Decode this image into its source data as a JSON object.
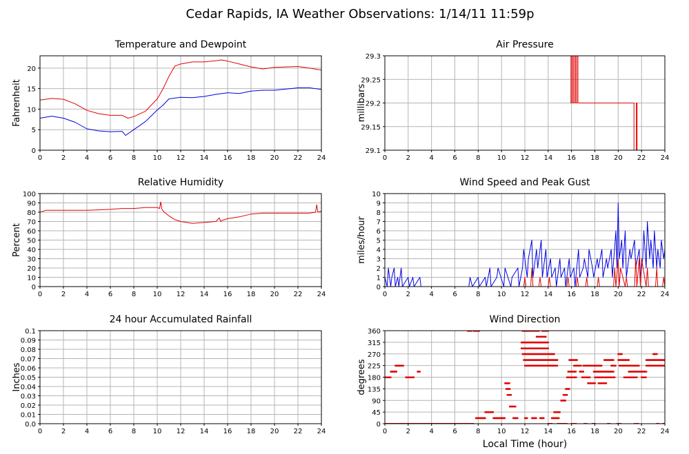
{
  "title": "Cedar Rapids, IA Weather Observations: 1/14/11 11:59p",
  "x_axis_label": "Local Time (hour)",
  "colors": {
    "red": "#e00000",
    "blue": "#0000e0",
    "grid": "#b4b4b4",
    "frame": "#000000"
  },
  "chart_data": [
    {
      "id": "temp",
      "type": "line",
      "title": "Temperature and Dewpoint",
      "xlabel": "",
      "ylabel": "Fahrenheit",
      "xlim": [
        0,
        24
      ],
      "ylim": [
        0,
        23
      ],
      "xticks": [
        0,
        2,
        4,
        6,
        8,
        10,
        12,
        14,
        16,
        18,
        20,
        22,
        24
      ],
      "yticks": [
        0,
        5,
        10,
        15,
        20
      ],
      "series": [
        {
          "color": "red",
          "x": [
            0,
            1,
            2,
            3,
            4,
            5,
            6,
            7,
            7.5,
            8,
            9,
            10,
            10.5,
            11,
            11.5,
            12,
            13,
            14,
            15,
            15.5,
            16,
            17,
            18,
            19,
            20,
            21,
            22,
            23,
            24
          ],
          "y": [
            12.2,
            12.6,
            12.4,
            11.3,
            9.7,
            8.9,
            8.5,
            8.5,
            7.8,
            8.2,
            9.5,
            12.5,
            15.0,
            18.0,
            20.5,
            21.0,
            21.5,
            21.5,
            21.8,
            22.0,
            21.7,
            21.0,
            20.3,
            19.8,
            20.2,
            20.3,
            20.4,
            20.0,
            19.5
          ]
        },
        {
          "color": "blue",
          "x": [
            0,
            1,
            2,
            3,
            4,
            5,
            6,
            7,
            7.3,
            8,
            9,
            10,
            10.5,
            11,
            12,
            13,
            14,
            15,
            16,
            17,
            18,
            19,
            20,
            21,
            22,
            23,
            24
          ],
          "y": [
            7.8,
            8.3,
            7.8,
            6.8,
            5.2,
            4.7,
            4.5,
            4.6,
            3.6,
            5.0,
            7.0,
            9.8,
            11.0,
            12.5,
            12.9,
            12.8,
            13.1,
            13.6,
            14.0,
            13.8,
            14.4,
            14.6,
            14.6,
            14.9,
            15.2,
            15.2,
            14.8
          ]
        }
      ]
    },
    {
      "id": "press",
      "type": "line",
      "title": "Air Pressure",
      "xlabel": "",
      "ylabel": "millibars",
      "xlim": [
        0,
        24
      ],
      "ylim": [
        29.1,
        29.3
      ],
      "xticks": [
        0,
        2,
        4,
        6,
        8,
        10,
        12,
        14,
        16,
        18,
        20,
        22,
        24
      ],
      "yticks": [
        29.1,
        29.15,
        29.2,
        29.25,
        29.3
      ],
      "series": [
        {
          "color": "red",
          "x": [
            0,
            15.95,
            15.95,
            16.05,
            16.05,
            16.15,
            16.15,
            16.25,
            16.25,
            16.35,
            16.35,
            16.45,
            16.45,
            16.55,
            16.55,
            16.65,
            16.65,
            21.35,
            21.35,
            21.55,
            21.55,
            21.62,
            21.62,
            21.7,
            21.7,
            24
          ],
          "y": [
            29.3,
            29.3,
            29.2,
            29.2,
            29.3,
            29.3,
            29.2,
            29.2,
            29.3,
            29.3,
            29.2,
            29.2,
            29.3,
            29.3,
            29.2,
            29.2,
            29.2,
            29.2,
            29.1,
            29.1,
            29.2,
            29.2,
            29.1,
            29.1,
            29.1,
            29.1
          ]
        }
      ]
    },
    {
      "id": "rh",
      "type": "line",
      "title": "Relative Humidity",
      "xlabel": "",
      "ylabel": "Percent",
      "xlim": [
        0,
        24
      ],
      "ylim": [
        0,
        100
      ],
      "xticks": [
        0,
        2,
        4,
        6,
        8,
        10,
        12,
        14,
        16,
        18,
        20,
        22,
        24
      ],
      "yticks": [
        0,
        10,
        20,
        30,
        40,
        50,
        60,
        70,
        80,
        90,
        100
      ],
      "series": [
        {
          "color": "red",
          "x": [
            0,
            0.5,
            2,
            4,
            6,
            7,
            8,
            9,
            10,
            10.2,
            10.3,
            10.4,
            10.6,
            11,
            11.5,
            12,
            13,
            14,
            15,
            15.3,
            15.4,
            15.5,
            16,
            17,
            18,
            19,
            20,
            21,
            22,
            23,
            23.5,
            23.6,
            23.7,
            24
          ],
          "y": [
            80,
            82,
            82,
            82,
            83,
            84,
            84,
            85,
            85,
            84,
            91,
            83,
            80,
            76,
            72,
            70,
            68,
            69,
            70,
            74,
            70,
            71,
            73,
            75,
            78,
            79,
            79,
            79,
            79,
            79,
            80,
            88,
            80,
            81
          ]
        }
      ]
    },
    {
      "id": "wind",
      "type": "line",
      "title": "Wind Speed and Peak Gust",
      "xlabel": "",
      "ylabel": "miles/hour",
      "xlim": [
        0,
        24
      ],
      "ylim": [
        0,
        10
      ],
      "xticks": [
        0,
        2,
        4,
        6,
        8,
        10,
        12,
        14,
        16,
        18,
        20,
        22,
        24
      ],
      "yticks": [
        0,
        1,
        2,
        3,
        4,
        5,
        6,
        7,
        8,
        9,
        10
      ],
      "series": [
        {
          "color": "blue",
          "x": [
            0,
            0.2,
            0.3,
            0.5,
            0.6,
            0.8,
            0.9,
            1.1,
            1.2,
            1.4,
            1.5,
            2.0,
            2.1,
            2.4,
            2.5,
            3.0,
            3.1,
            3.3,
            7.2,
            7.3,
            7.5,
            8.0,
            8.1,
            8.6,
            8.7,
            9.0,
            9.1,
            9.6,
            9.7,
            10.2,
            10.3,
            10.8,
            10.9,
            11.4,
            11.5,
            11.8,
            11.9,
            12.2,
            12.3,
            12.6,
            12.7,
            13.0,
            13.1,
            13.4,
            13.5,
            13.8,
            13.9,
            14.2,
            14.3,
            14.6,
            14.7,
            15.0,
            15.1,
            15.4,
            15.5,
            15.8,
            15.9,
            16.2,
            16.3,
            16.6,
            16.7,
            17.0,
            17.1,
            17.4,
            17.5,
            17.8,
            17.9,
            18.2,
            18.3,
            18.6,
            18.7,
            19.0,
            19.1,
            19.4,
            19.5,
            19.8,
            19.9,
            20.0,
            20.1,
            20.3,
            20.4,
            20.6,
            20.7,
            21.0,
            21.1,
            21.4,
            21.5,
            21.8,
            21.9,
            22.1,
            22.2,
            22.4,
            22.5,
            22.7,
            22.8,
            23.0,
            23.1,
            23.3,
            23.4,
            23.6,
            23.7,
            23.9,
            24
          ],
          "y": [
            1,
            0,
            2,
            0,
            1,
            2,
            0,
            1,
            0,
            2,
            0,
            1,
            0,
            1,
            0,
            1,
            0,
            0,
            0,
            1,
            0,
            1,
            0,
            1,
            0,
            2,
            0,
            1,
            2,
            0,
            2,
            0,
            1,
            2,
            0,
            2,
            4,
            1,
            3,
            5,
            1,
            4,
            2,
            5,
            1,
            4,
            1,
            3,
            1,
            2,
            0,
            3,
            1,
            2,
            0,
            3,
            1,
            2,
            0,
            4,
            1,
            2,
            3,
            1,
            4,
            2,
            1,
            3,
            2,
            4,
            1,
            3,
            2,
            4,
            1,
            6,
            2,
            9,
            3,
            5,
            2,
            6,
            1,
            4,
            3,
            5,
            2,
            4,
            1,
            3,
            6,
            2,
            7,
            3,
            5,
            2,
            6,
            2,
            4,
            2,
            5,
            3,
            4
          ]
        },
        {
          "color": "red",
          "x": [
            0,
            11.9,
            12.0,
            12.1,
            12.5,
            12.6,
            12.7,
            13.2,
            13.3,
            13.4,
            14.0,
            14.1,
            14.2,
            15.6,
            15.7,
            15.8,
            16.4,
            16.5,
            16.6,
            17.2,
            17.3,
            17.4,
            18.2,
            18.3,
            18.4,
            19.6,
            19.7,
            19.8,
            20.0,
            20.1,
            20.2,
            20.6,
            20.7,
            20.8,
            21.4,
            21.5,
            21.6,
            21.8,
            21.9,
            22.0,
            22.4,
            22.5,
            22.6,
            23.2,
            23.3,
            23.4,
            23.8,
            23.9,
            24
          ],
          "y": [
            0,
            0,
            1,
            0,
            0,
            2,
            0,
            0,
            1,
            0,
            0,
            1,
            0,
            0,
            1,
            0,
            0,
            1,
            0,
            0,
            1,
            0,
            0,
            1,
            0,
            0,
            2,
            0,
            3,
            0,
            2,
            0,
            1,
            0,
            0,
            3,
            0,
            3,
            0,
            3,
            0,
            2,
            0,
            0,
            2,
            0,
            0,
            1,
            0
          ]
        }
      ]
    },
    {
      "id": "rain",
      "type": "line",
      "title": "24 hour Accumulated Rainfall",
      "xlabel": "",
      "ylabel": "Inches",
      "xlim": [
        0,
        24
      ],
      "ylim": [
        0,
        0.1
      ],
      "xticks": [
        0,
        2,
        4,
        6,
        8,
        10,
        12,
        14,
        16,
        18,
        20,
        22,
        24
      ],
      "yticks": [
        "0.0",
        "0.01",
        "0.02",
        "0.03",
        "0.04",
        "0.05",
        "0.06",
        "0.07",
        "0.08",
        "0.09",
        "0.1"
      ],
      "series": [
        {
          "color": "red",
          "x": [
            0,
            24
          ],
          "y": [
            0,
            0
          ]
        }
      ]
    },
    {
      "id": "dir",
      "type": "scatter",
      "title": "Wind Direction",
      "xlabel": "Local Time (hour)",
      "ylabel": "degrees",
      "xlim": [
        0,
        24
      ],
      "ylim": [
        0,
        360
      ],
      "xticks": [
        0,
        2,
        4,
        6,
        8,
        10,
        12,
        14,
        16,
        18,
        20,
        22,
        24
      ],
      "yticks": [
        0,
        45,
        90,
        135,
        180,
        225,
        270,
        315,
        360
      ],
      "series": [
        {
          "color": "red",
          "runs": [
            [
              0.0,
              7.6,
              0
            ],
            [
              0.0,
              0.5,
              180
            ],
            [
              0.5,
              1.0,
              202
            ],
            [
              0.9,
              1.6,
              225
            ],
            [
              1.8,
              2.5,
              180
            ],
            [
              2.8,
              3.0,
              202
            ],
            [
              7.1,
              7.4,
              360
            ],
            [
              7.6,
              8.1,
              360
            ],
            [
              7.8,
              8.6,
              22
            ],
            [
              8.6,
              9.3,
              45
            ],
            [
              9.3,
              10.3,
              22
            ],
            [
              10.3,
              10.7,
              157
            ],
            [
              10.4,
              10.7,
              135
            ],
            [
              10.5,
              10.8,
              112
            ],
            [
              10.7,
              11.2,
              67
            ],
            [
              11.0,
              11.4,
              22
            ],
            [
              11.7,
              14.0,
              315
            ],
            [
              11.7,
              14.0,
              292
            ],
            [
              11.8,
              14.5,
              270
            ],
            [
              11.9,
              14.8,
              247
            ],
            [
              12.0,
              14.8,
              225
            ],
            [
              11.8,
              13.2,
              360
            ],
            [
              13.0,
              13.8,
              337
            ],
            [
              13.5,
              14.0,
              360
            ],
            [
              12.0,
              12.2,
              22
            ],
            [
              12.6,
              13.0,
              22
            ],
            [
              13.3,
              13.6,
              22
            ],
            [
              14.0,
              14.3,
              0
            ],
            [
              14.3,
              14.9,
              22
            ],
            [
              14.5,
              15.0,
              45
            ],
            [
              14.8,
              15.6,
              0
            ],
            [
              15.1,
              15.5,
              90
            ],
            [
              15.3,
              15.6,
              112
            ],
            [
              15.5,
              15.8,
              135
            ],
            [
              15.6,
              16.4,
              180
            ],
            [
              15.7,
              16.4,
              202
            ],
            [
              15.8,
              16.5,
              247
            ],
            [
              16.2,
              16.8,
              225
            ],
            [
              16.7,
              17.0,
              202
            ],
            [
              16.9,
              17.6,
              180
            ],
            [
              17.0,
              18.6,
              225
            ],
            [
              17.4,
              18.0,
              157
            ],
            [
              17.9,
              19.6,
              202
            ],
            [
              18.0,
              19.7,
              180
            ],
            [
              18.3,
              19.0,
              157
            ],
            [
              18.8,
              19.6,
              247
            ],
            [
              19.4,
              19.8,
              225
            ],
            [
              20.0,
              20.9,
              247
            ],
            [
              20.1,
              20.7,
              225
            ],
            [
              20.0,
              20.3,
              270
            ],
            [
              20.5,
              20.8,
              180
            ],
            [
              20.9,
              22.4,
              202
            ],
            [
              20.8,
              21.6,
              180
            ],
            [
              20.8,
              21.8,
              225
            ],
            [
              22.0,
              22.4,
              180
            ],
            [
              22.4,
              24.0,
              225
            ],
            [
              22.4,
              24.0,
              247
            ],
            [
              23.0,
              23.3,
              270
            ],
            [
              16.0,
              16.4,
              0
            ],
            [
              17.1,
              17.3,
              0
            ],
            [
              17.8,
              18.0,
              0
            ],
            [
              19.1,
              19.3,
              0
            ],
            [
              19.9,
              20.2,
              0
            ],
            [
              21.4,
              21.7,
              0
            ],
            [
              23.3,
              23.5,
              0
            ],
            [
              23.8,
              24.0,
              0
            ]
          ]
        }
      ]
    }
  ]
}
